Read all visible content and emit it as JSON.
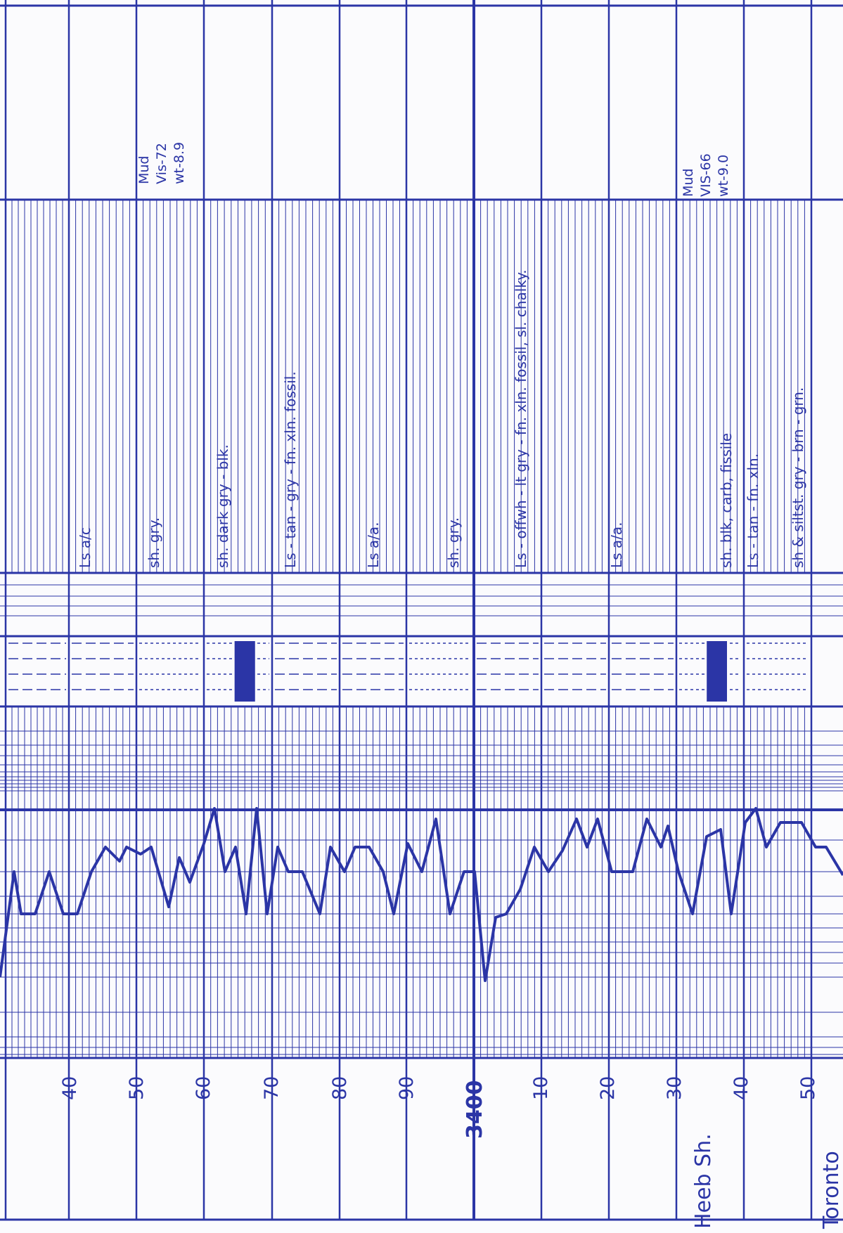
{
  "ink_color": "#2b35a6",
  "paper_color": "#fbfbfd",
  "depth_labels": [
    "40",
    "50",
    "60",
    "70",
    "80",
    "90",
    "3400",
    "10",
    "20",
    "30",
    "40",
    "50"
  ],
  "formation_tops": [
    {
      "name": "Heeb Sh.",
      "depth_label": "3440"
    },
    {
      "name": "Toronto",
      "depth_label": "3450"
    }
  ],
  "mud_reports": [
    {
      "lines": [
        "Mud",
        "Vis-72",
        "wt-8.9"
      ]
    },
    {
      "lines": [
        "Mud",
        "VIS-66",
        "wt-9.0"
      ]
    }
  ],
  "lithology_descriptions": [
    "Ls a/c",
    "sh. gry.",
    "sh. dark gry - blk.",
    "Ls - tan - gry - fn. xln. fossil.",
    "Ls a/a.",
    "sh. gry.",
    "Ls - offwh - lt gry - fn. xln. fossil, sl. chalky.",
    "Ls a/a.",
    "sh. blk, carb, fissile",
    "Ls - tan - fn. xln.",
    "sh & siltst. gry - brn - grn."
  ],
  "lithology_symbols": [
    "limestone",
    "limestone",
    "shale",
    "carbonaceous shale",
    "limestone",
    "limestone",
    "shale",
    "limestone",
    "limestone",
    "limestone",
    "carbonaceous shale",
    "shale & siltstone"
  ]
}
